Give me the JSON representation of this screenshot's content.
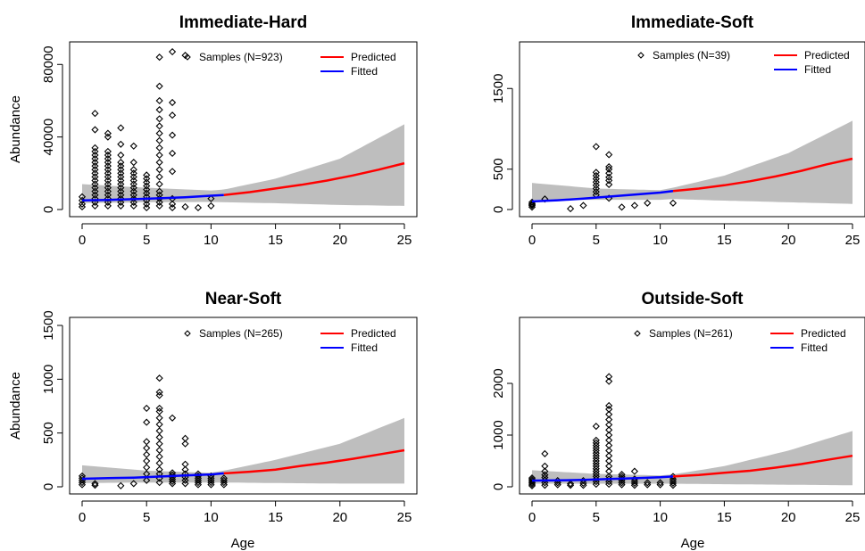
{
  "chart_data": [
    {
      "type": "scatter",
      "title": "Immediate-Hard",
      "xlabel": "",
      "ylabel": "Abundance",
      "xlim": [
        0,
        25
      ],
      "ylim": [
        0,
        88000
      ],
      "xticks": [
        0,
        5,
        10,
        15,
        20,
        25
      ],
      "yticks": [
        0,
        40000,
        80000
      ],
      "ytick_labels": [
        "0",
        "40000",
        "80000"
      ],
      "legend": {
        "samples": "Samples (N=923)",
        "predicted": "Predicted",
        "fitted": "Fitted"
      },
      "colors": {
        "predicted": "#ff0000",
        "fitted": "#0000ff",
        "band": "#bebebe"
      },
      "fitted": {
        "x": [
          0,
          2,
          4,
          6,
          8,
          10,
          11
        ],
        "y": [
          5000,
          5300,
          5700,
          6200,
          6800,
          7600,
          8000
        ]
      },
      "predicted": {
        "x": [
          11,
          13,
          15,
          17,
          19,
          21,
          23,
          25
        ],
        "y": [
          8000,
          9600,
          11600,
          13600,
          16000,
          18800,
          22000,
          25500
        ]
      },
      "band": {
        "x": [
          0,
          5,
          10,
          11,
          15,
          20,
          25
        ],
        "lower": [
          3500,
          4000,
          4200,
          4000,
          3500,
          2500,
          2000
        ],
        "upper": [
          14000,
          12000,
          10500,
          11000,
          17000,
          28000,
          47000
        ]
      },
      "samples": [
        {
          "x": 0,
          "y": [
            1500,
            3000,
            5000,
            7000
          ]
        },
        {
          "x": 1,
          "y": [
            2000,
            4000,
            6000,
            8000,
            10000,
            12000,
            14000,
            16000,
            18000,
            20000,
            22000,
            24000,
            26000,
            28000,
            30000,
            32000,
            34000,
            44000,
            53000
          ]
        },
        {
          "x": 2,
          "y": [
            2000,
            4000,
            6000,
            8000,
            10000,
            12000,
            14000,
            16000,
            18000,
            20000,
            22000,
            24000,
            26000,
            28000,
            30000,
            32000,
            40000,
            42000
          ]
        },
        {
          "x": 3,
          "y": [
            2000,
            4000,
            6000,
            8000,
            10000,
            12000,
            14000,
            16000,
            18000,
            20000,
            22000,
            24000,
            26000,
            30000,
            36000,
            45000
          ]
        },
        {
          "x": 4,
          "y": [
            2000,
            4000,
            6000,
            8000,
            10000,
            12000,
            14000,
            16000,
            18000,
            20000,
            22000,
            26000,
            35000
          ]
        },
        {
          "x": 5,
          "y": [
            1000,
            3000,
            5000,
            7000,
            9000,
            11000,
            13000,
            15000,
            17000,
            19000
          ]
        },
        {
          "x": 6,
          "y": [
            2000,
            4000,
            6000,
            8000,
            10000,
            14000,
            18000,
            22000,
            26000,
            30000,
            34000,
            38000,
            42000,
            46000,
            50000,
            55000,
            60000,
            68000,
            84000
          ]
        },
        {
          "x": 7,
          "y": [
            1000,
            3000,
            6000,
            21000,
            31000,
            41000,
            52000,
            59000,
            87000
          ]
        },
        {
          "x": 8,
          "y": [
            85000,
            1500
          ]
        },
        {
          "x": 9,
          "y": [
            1000
          ]
        },
        {
          "x": 10,
          "y": [
            2000,
            6000
          ]
        }
      ]
    },
    {
      "type": "scatter",
      "title": "Immediate-Soft",
      "xlabel": "",
      "ylabel": "",
      "xlim": [
        0,
        25
      ],
      "ylim": [
        0,
        2000
      ],
      "xticks": [
        0,
        5,
        10,
        15,
        20,
        25
      ],
      "yticks": [
        0,
        500,
        1500
      ],
      "ytick_labels": [
        "0",
        "500",
        "1500"
      ],
      "legend": {
        "samples": "Samples (N=39)",
        "predicted": "Predicted",
        "fitted": "Fitted"
      },
      "colors": {
        "predicted": "#ff0000",
        "fitted": "#0000ff",
        "band": "#bebebe"
      },
      "fitted": {
        "x": [
          0,
          2,
          4,
          6,
          8,
          10,
          11
        ],
        "y": [
          100,
          115,
          135,
          160,
          185,
          210,
          230
        ]
      },
      "predicted": {
        "x": [
          11,
          13,
          15,
          17,
          19,
          21,
          23,
          25
        ],
        "y": [
          230,
          260,
          300,
          350,
          410,
          480,
          560,
          630
        ]
      },
      "band": {
        "x": [
          0,
          5,
          10,
          11,
          15,
          20,
          25
        ],
        "lower": [
          120,
          120,
          120,
          130,
          110,
          90,
          70
        ],
        "upper": [
          330,
          260,
          240,
          270,
          420,
          700,
          1100
        ]
      },
      "samples": [
        {
          "x": 0,
          "y": [
            30,
            50,
            60,
            70,
            90
          ]
        },
        {
          "x": 1,
          "y": [
            130
          ]
        },
        {
          "x": 3,
          "y": [
            10
          ]
        },
        {
          "x": 4,
          "y": [
            50
          ]
        },
        {
          "x": 5,
          "y": [
            180,
            220,
            260,
            300,
            340,
            380,
            420,
            460,
            780
          ]
        },
        {
          "x": 6,
          "y": [
            140,
            310,
            360,
            400,
            450,
            500,
            530,
            680
          ]
        },
        {
          "x": 7,
          "y": [
            30
          ]
        },
        {
          "x": 8,
          "y": [
            50
          ]
        },
        {
          "x": 9,
          "y": [
            80
          ]
        },
        {
          "x": 11,
          "y": [
            80
          ]
        }
      ]
    },
    {
      "type": "scatter",
      "title": "Near-Soft",
      "xlabel": "",
      "ylabel": "Abundance",
      "xlim": [
        0,
        25
      ],
      "ylim": [
        0,
        1500
      ],
      "xticks": [
        0,
        5,
        10,
        15,
        20,
        25
      ],
      "yticks": [
        0,
        500,
        1000,
        1500
      ],
      "ytick_labels": [
        "0",
        "500",
        "1000",
        "1500"
      ],
      "legend": {
        "samples": "Samples (N=265)",
        "predicted": "Predicted",
        "fitted": "Fitted"
      },
      "colors": {
        "predicted": "#ff0000",
        "fitted": "#0000ff",
        "band": "#bebebe"
      },
      "fitted": {
        "x": [
          0,
          2,
          4,
          6,
          8,
          10,
          11
        ],
        "y": [
          75,
          80,
          85,
          95,
          105,
          115,
          125
        ]
      },
      "predicted": {
        "x": [
          11,
          13,
          15,
          17,
          19,
          21,
          23,
          25
        ],
        "y": [
          125,
          140,
          160,
          195,
          225,
          260,
          300,
          340
        ]
      },
      "band": {
        "x": [
          0,
          5,
          10,
          11,
          15,
          20,
          25
        ],
        "lower": [
          35,
          40,
          40,
          40,
          35,
          30,
          30
        ],
        "upper": [
          200,
          150,
          130,
          150,
          250,
          400,
          640
        ]
      },
      "samples": [
        {
          "x": 0,
          "y": [
            20,
            40,
            60,
            80,
            100
          ]
        },
        {
          "x": 1,
          "y": [
            15,
            30
          ]
        },
        {
          "x": 3,
          "y": [
            10
          ]
        },
        {
          "x": 4,
          "y": [
            30
          ]
        },
        {
          "x": 5,
          "y": [
            60,
            120,
            180,
            240,
            300,
            360,
            420,
            600,
            730
          ]
        },
        {
          "x": 6,
          "y": [
            40,
            80,
            120,
            160,
            220,
            280,
            340,
            400,
            460,
            520,
            580,
            640,
            700,
            730,
            850,
            880,
            1010
          ]
        },
        {
          "x": 7,
          "y": [
            30,
            50,
            70,
            90,
            110,
            130,
            640
          ]
        },
        {
          "x": 8,
          "y": [
            30,
            60,
            90,
            120,
            160,
            210,
            400,
            450
          ]
        },
        {
          "x": 9,
          "y": [
            20,
            40,
            60,
            80,
            100,
            120
          ]
        },
        {
          "x": 10,
          "y": [
            20,
            40,
            60,
            80,
            100
          ]
        },
        {
          "x": 11,
          "y": [
            20,
            40,
            60,
            80
          ]
        }
      ]
    },
    {
      "type": "scatter",
      "title": "Outside-Soft",
      "xlabel": "",
      "ylabel": "",
      "xlim": [
        0,
        25
      ],
      "ylim": [
        0,
        2500
      ],
      "xticks": [
        0,
        5,
        10,
        15,
        20,
        25
      ],
      "yticks": [
        0,
        1000,
        2000
      ],
      "ytick_labels": [
        "0",
        "1000",
        "2000"
      ],
      "legend": {
        "samples": "Samples (N=261)",
        "predicted": "Predicted",
        "fitted": "Fitted"
      },
      "colors": {
        "predicted": "#ff0000",
        "fitted": "#0000ff",
        "band": "#bebebe"
      },
      "fitted": {
        "x": [
          0,
          2,
          4,
          6,
          8,
          10,
          11
        ],
        "y": [
          120,
          125,
          135,
          150,
          165,
          185,
          200
        ]
      },
      "predicted": {
        "x": [
          11,
          13,
          15,
          17,
          19,
          21,
          23,
          25
        ],
        "y": [
          200,
          230,
          270,
          310,
          370,
          440,
          520,
          600
        ]
      },
      "band": {
        "x": [
          0,
          5,
          10,
          11,
          15,
          20,
          25
        ],
        "lower": [
          60,
          60,
          60,
          60,
          50,
          40,
          30
        ],
        "upper": [
          320,
          250,
          220,
          240,
          400,
          700,
          1080
        ]
      },
      "samples": [
        {
          "x": 0,
          "y": [
            20,
            50,
            80,
            110,
            140,
            170
          ]
        },
        {
          "x": 1,
          "y": [
            30,
            80,
            130,
            180,
            230,
            300,
            400,
            640
          ]
        },
        {
          "x": 2,
          "y": [
            40,
            80,
            120
          ]
        },
        {
          "x": 3,
          "y": [
            30,
            60
          ]
        },
        {
          "x": 4,
          "y": [
            30,
            70,
            120
          ]
        },
        {
          "x": 5,
          "y": [
            50,
            100,
            150,
            200,
            250,
            300,
            350,
            400,
            450,
            500,
            550,
            600,
            650,
            700,
            750,
            800,
            850,
            900,
            1170
          ]
        },
        {
          "x": 6,
          "y": [
            50,
            100,
            150,
            200,
            300,
            400,
            500,
            600,
            700,
            800,
            900,
            1000,
            1100,
            1200,
            1300,
            1400,
            1500,
            1570,
            2040,
            2130
          ]
        },
        {
          "x": 7,
          "y": [
            40,
            80,
            120,
            160,
            200,
            240
          ]
        },
        {
          "x": 8,
          "y": [
            30,
            70,
            110,
            150,
            300
          ]
        },
        {
          "x": 9,
          "y": [
            40,
            80
          ]
        },
        {
          "x": 10,
          "y": [
            40,
            80
          ]
        },
        {
          "x": 11,
          "y": [
            30,
            70,
            110,
            150,
            200
          ]
        }
      ]
    }
  ],
  "shared_xlabel": "Age"
}
